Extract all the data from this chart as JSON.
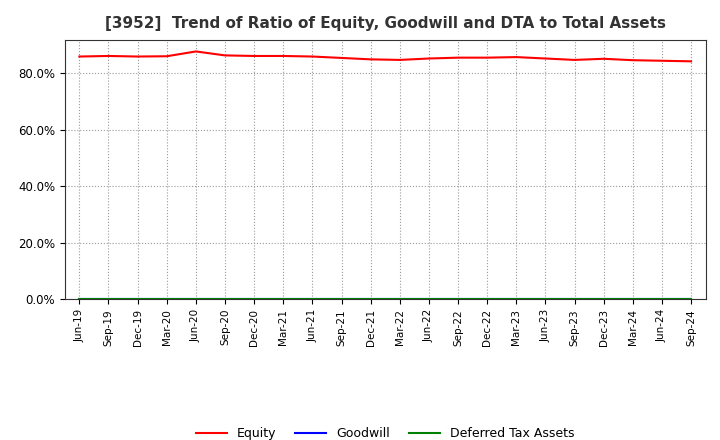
{
  "title": "[3952]  Trend of Ratio of Equity, Goodwill and DTA to Total Assets",
  "x_labels": [
    "Jun-19",
    "Sep-19",
    "Dec-19",
    "Mar-20",
    "Jun-20",
    "Sep-20",
    "Dec-20",
    "Mar-21",
    "Jun-21",
    "Sep-21",
    "Dec-21",
    "Mar-22",
    "Jun-22",
    "Sep-22",
    "Dec-22",
    "Mar-23",
    "Jun-23",
    "Sep-23",
    "Dec-23",
    "Mar-24",
    "Jun-24",
    "Sep-24"
  ],
  "equity": [
    86.0,
    86.2,
    86.0,
    86.1,
    87.8,
    86.4,
    86.2,
    86.2,
    86.0,
    85.5,
    85.0,
    84.8,
    85.3,
    85.6,
    85.6,
    85.8,
    85.3,
    84.8,
    85.2,
    84.7,
    84.5,
    84.3
  ],
  "goodwill": [
    0.0,
    0.0,
    0.0,
    0.0,
    0.0,
    0.0,
    0.0,
    0.0,
    0.0,
    0.0,
    0.0,
    0.0,
    0.0,
    0.0,
    0.0,
    0.0,
    0.0,
    0.0,
    0.0,
    0.0,
    0.0,
    0.0
  ],
  "dta": [
    0.0,
    0.0,
    0.0,
    0.0,
    0.0,
    0.0,
    0.0,
    0.0,
    0.0,
    0.0,
    0.0,
    0.0,
    0.0,
    0.0,
    0.0,
    0.0,
    0.0,
    0.0,
    0.0,
    0.0,
    0.0,
    0.0
  ],
  "equity_color": "#FF0000",
  "goodwill_color": "#0000FF",
  "dta_color": "#008000",
  "ylim": [
    0,
    92
  ],
  "yticks": [
    0,
    20,
    40,
    60,
    80
  ],
  "ytick_labels": [
    "0.0%",
    "20.0%",
    "40.0%",
    "60.0%",
    "80.0%"
  ],
  "background_color": "#FFFFFF",
  "plot_bg_color": "#FFFFFF",
  "grid_color": "#999999",
  "title_fontsize": 11,
  "legend_labels": [
    "Equity",
    "Goodwill",
    "Deferred Tax Assets"
  ]
}
